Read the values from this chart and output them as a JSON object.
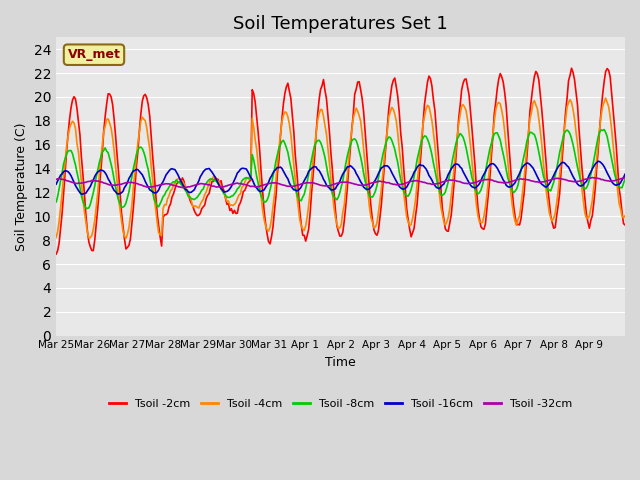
{
  "title": "Soil Temperatures Set 1",
  "xlabel": "Time",
  "ylabel": "Soil Temperature (C)",
  "ylim": [
    0,
    25
  ],
  "yticks": [
    0,
    2,
    4,
    6,
    8,
    10,
    12,
    14,
    16,
    18,
    20,
    22,
    24
  ],
  "background_color": "#d8d8d8",
  "plot_background": "#e8e8e8",
  "legend_label": "VR_met",
  "series_colors": {
    "Tsoil -2cm": "#ff0000",
    "Tsoil -4cm": "#ff8800",
    "Tsoil -8cm": "#00cc00",
    "Tsoil -16cm": "#0000cc",
    "Tsoil -32cm": "#aa00aa"
  },
  "xtick_labels": [
    "Mar 25",
    "Mar 26",
    "Mar 27",
    "Mar 28",
    "Mar 29",
    "Mar 30",
    "Mar 31",
    "Apr 1",
    "Apr 2",
    "Apr 3",
    "Apr 4",
    "Apr 5",
    "Apr 6",
    "Apr 7",
    "Apr 8",
    "Apr 9"
  ],
  "num_days": 16,
  "title_fontsize": 13
}
